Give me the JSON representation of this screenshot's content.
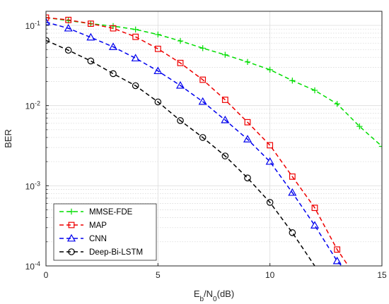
{
  "chart_data": {
    "type": "line",
    "y_scale": "log",
    "grid": true,
    "minor_grid": true,
    "legend_position": "bottom-left",
    "xlabel": "E_b/N_0(dB)",
    "xlabel_parts": {
      "main1": "E",
      "sub1": "b",
      "main2": "/N",
      "sub2": "0",
      "tail": "(dB)"
    },
    "ylabel": "BER",
    "xlim": [
      0,
      15
    ],
    "ylim": [
      0.0001,
      0.15
    ],
    "x_ticks": [
      "0",
      "5",
      "10",
      "15"
    ],
    "y_ticks": [
      {
        "base": "10",
        "exp": "-1",
        "value": 0.1
      },
      {
        "base": "10",
        "exp": "-2",
        "value": 0.01
      },
      {
        "base": "10",
        "exp": "-3",
        "value": 0.001
      },
      {
        "base": "10",
        "exp": "-4",
        "value": 0.0001
      }
    ],
    "series": [
      {
        "name": "MMSE-FDE",
        "color": "#00dd00",
        "marker": "plus",
        "x": [
          0,
          1,
          2,
          3,
          4,
          5,
          6,
          7,
          8,
          9,
          10,
          11,
          12,
          13,
          14,
          15
        ],
        "y": [
          0.125,
          0.115,
          0.105,
          0.098,
          0.089,
          0.077,
          0.064,
          0.052,
          0.043,
          0.035,
          0.028,
          0.0205,
          0.0155,
          0.0105,
          0.0055,
          0.0031
        ]
      },
      {
        "name": "MAP",
        "color": "#ee0000",
        "marker": "square",
        "x": [
          0,
          1,
          2,
          3,
          4,
          5,
          6,
          7,
          8,
          9,
          10,
          11,
          12,
          13,
          13.5
        ],
        "y": [
          0.125,
          0.117,
          0.105,
          0.092,
          0.072,
          0.051,
          0.034,
          0.021,
          0.0118,
          0.0062,
          0.0032,
          0.0013,
          0.00053,
          0.00016,
          0.0001
        ]
      },
      {
        "name": "CNN",
        "color": "#0000ee",
        "marker": "triangle",
        "x": [
          0,
          1,
          2,
          3,
          4,
          5,
          6,
          7,
          8,
          9,
          10,
          11,
          12,
          13,
          13.2
        ],
        "y": [
          0.11,
          0.092,
          0.071,
          0.054,
          0.039,
          0.027,
          0.0178,
          0.0112,
          0.0066,
          0.0038,
          0.002,
          0.00082,
          0.00032,
          0.000115,
          0.0001
        ]
      },
      {
        "name": "Deep-Bi-LSTM",
        "color": "#000000",
        "marker": "circle",
        "x": [
          0,
          1,
          2,
          3,
          4,
          5,
          6,
          7,
          8,
          9,
          10,
          11,
          12
        ],
        "y": [
          0.065,
          0.049,
          0.036,
          0.025,
          0.0177,
          0.0111,
          0.0065,
          0.004,
          0.00235,
          0.00125,
          0.00062,
          0.00026,
          0.0001
        ]
      }
    ]
  }
}
